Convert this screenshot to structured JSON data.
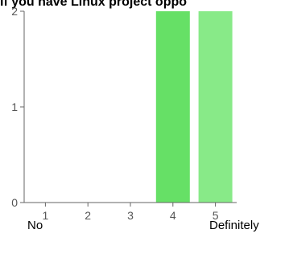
{
  "title": "If you have Linux project oppo",
  "chart_data": {
    "type": "bar",
    "categories": [
      "1",
      "2",
      "3",
      "4",
      "5"
    ],
    "values": [
      0,
      0,
      0,
      2,
      2
    ],
    "ylim": [
      0,
      2
    ],
    "yticks": [
      "0",
      "1",
      "2"
    ],
    "grid": false,
    "bar_colors": [
      "#66e066",
      "#66e066",
      "#66e066",
      "#66e066",
      "#88ea88"
    ],
    "axis_color": "#666666"
  },
  "scale": {
    "low_label": "No",
    "high_label": "Definitely"
  }
}
